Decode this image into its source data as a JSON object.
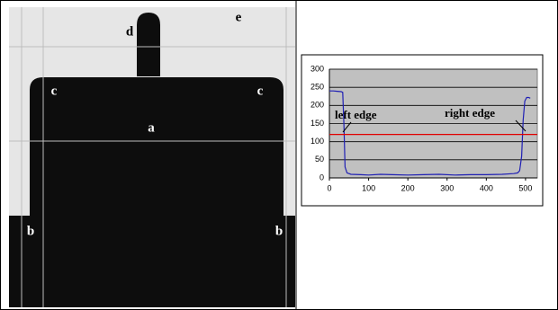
{
  "image": {
    "labels": {
      "a": "a",
      "b_left": "b",
      "b_right": "b",
      "c_left": "c",
      "c_right": "c",
      "d": "d",
      "e": "e"
    }
  },
  "chart_data": {
    "type": "line",
    "x": [
      0,
      10,
      20,
      30,
      34,
      37,
      40,
      45,
      55,
      80,
      100,
      130,
      160,
      200,
      240,
      280,
      320,
      360,
      400,
      440,
      470,
      480,
      485,
      490,
      494,
      498,
      503,
      508,
      512
    ],
    "series": [
      {
        "color": "#1f1fb4",
        "values": [
          240,
          240,
          239,
          238,
          236,
          150,
          30,
          14,
          10,
          9,
          8,
          10,
          9,
          8,
          9,
          10,
          8,
          9,
          9,
          10,
          12,
          14,
          20,
          60,
          160,
          212,
          222,
          222,
          220
        ]
      }
    ],
    "threshold": {
      "value": 120,
      "color": "#e00000"
    },
    "xlim": [
      0,
      530
    ],
    "ylim": [
      0,
      300
    ],
    "xticks": [
      0,
      100,
      200,
      300,
      400,
      500
    ],
    "yticks": [
      0,
      50,
      100,
      150,
      200,
      250,
      300
    ],
    "grid": true,
    "annotations": [
      "left edge",
      "right edge"
    ]
  }
}
